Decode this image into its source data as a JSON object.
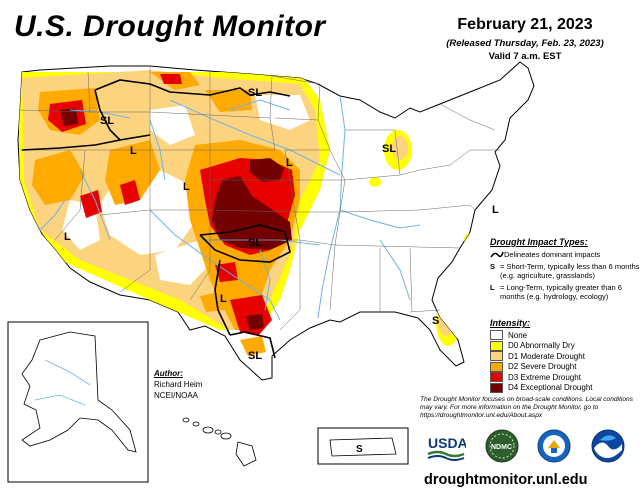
{
  "title": "U.S. Drought Monitor",
  "date": {
    "main": "February 21, 2023",
    "released": "(Released Thursday, Feb. 23, 2023)",
    "valid": "Valid 7 a.m. EST"
  },
  "colors": {
    "none": "#ffffff",
    "d0": "#ffff00",
    "d1": "#fcd37f",
    "d2": "#ffaa00",
    "d3": "#e60000",
    "d4": "#730000",
    "water": "#6fb4e6",
    "border": "#000000"
  },
  "impact_legend": {
    "title": "Drought Impact Types:",
    "line_text": "Delineates dominant impacts",
    "s_key": "S",
    "s_text": "= Short-Term, typically less than 6 months (e.g. agriculture, grasslands)",
    "l_key": "L",
    "l_text": "= Long-Term, typically greater than 6 months (e.g. hydrology, ecology)"
  },
  "intensity_legend": {
    "title": "Intensity:",
    "items": [
      {
        "label": "None",
        "color": "#ffffff"
      },
      {
        "label": "D0 Abnormally Dry",
        "color": "#ffff00"
      },
      {
        "label": "D1 Moderate Drought",
        "color": "#fcd37f"
      },
      {
        "label": "D2 Severe Drought",
        "color": "#ffaa00"
      },
      {
        "label": "D3 Extreme Drought",
        "color": "#e60000"
      },
      {
        "label": "D4 Exceptional Drought",
        "color": "#730000"
      }
    ]
  },
  "disclaimer": "The Drought Monitor focuses on broad-scale conditions. Local conditions may vary. For more information on the Drought Monitor, go to https://droughtmonitor.unl.edu/About.aspx",
  "author": {
    "label": "Author:",
    "name": "Richard Heim",
    "org": "NCEI/NOAA"
  },
  "map_labels": {
    "sl": "SL",
    "l": "L",
    "s": "S"
  },
  "logos": {
    "usda": "USDA",
    "ndmc": "NDMC"
  },
  "url": "droughtmonitor.unl.edu"
}
